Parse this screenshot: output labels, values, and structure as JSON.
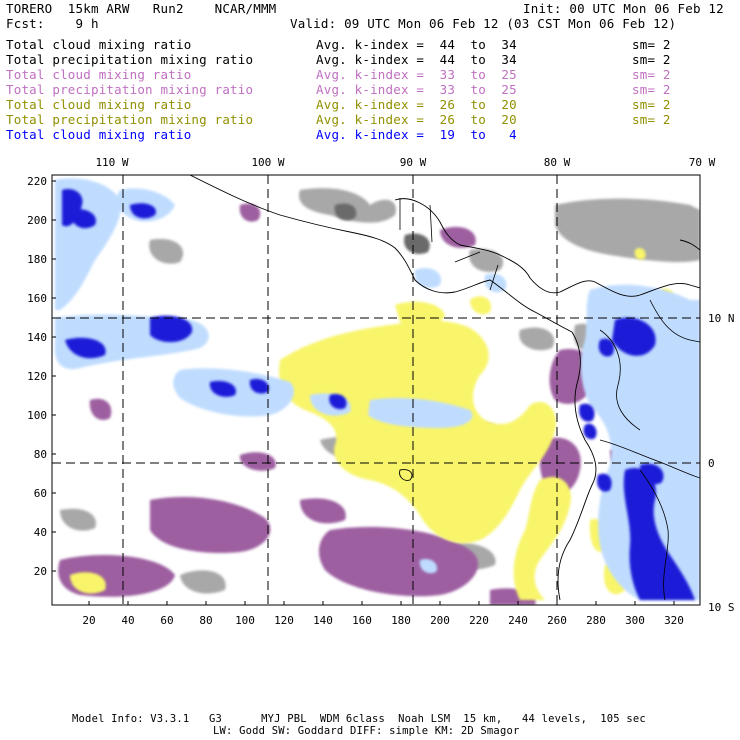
{
  "header": {
    "model": "TORERO  15km ARW   Run2    NCAR/MMM",
    "init": "Init: 00 UTC Mon 06 Feb 12",
    "fcst": "Fcst:    9 h",
    "valid": "Valid: 09 UTC Mon 06 Feb 12 (03 CST Mon 06 Feb 12)"
  },
  "fields": [
    {
      "name": "Total cloud mixing ratio",
      "avg": "Avg. k-index =  44  to  34",
      "sm": "sm= 2",
      "color": "#000000"
    },
    {
      "name": "Total precipitation mixing ratio",
      "avg": "Avg. k-index =  44  to  34",
      "sm": "sm= 2",
      "color": "#000000"
    },
    {
      "name": "Total cloud mixing ratio",
      "avg": "Avg. k-index =  33  to  25",
      "sm": "sm= 2",
      "color": "#c070c0"
    },
    {
      "name": "Total precipitation mixing ratio",
      "avg": "Avg. k-index =  33  to  25",
      "sm": "sm= 2",
      "color": "#c070c0"
    },
    {
      "name": "Total cloud mixing ratio",
      "avg": "Avg. k-index =  26  to  20",
      "sm": "sm= 2",
      "color": "#909000"
    },
    {
      "name": "Total precipitation mixing ratio",
      "avg": "Avg. k-index =  26  to  20",
      "sm": "sm= 2",
      "color": "#909000"
    },
    {
      "name": "Total cloud mixing ratio",
      "avg": "Avg. k-index =  19  to   4",
      "sm": "",
      "color": "#0000ff"
    }
  ],
  "map": {
    "lon_labels": [
      "110 W",
      "100 W",
      "90 W",
      "80 W",
      "70 W"
    ],
    "lat_labels": [
      "10 N",
      "0",
      "10 S"
    ],
    "y_ticks": [
      "220",
      "200",
      "180",
      "160",
      "140",
      "120",
      "100",
      "80",
      "60",
      "40",
      "20"
    ],
    "x_ticks": [
      "20",
      "40",
      "60",
      "80",
      "100",
      "120",
      "140",
      "160",
      "180",
      "200",
      "220",
      "240",
      "260",
      "280",
      "300",
      "320"
    ],
    "palette": {
      "gray": "#a8a8a8",
      "darkgray": "#6a6a6a",
      "purple": "#9d5fa0",
      "yellow": "#f8f56a",
      "lightblue": "#bfdcff",
      "blue": "#1b1bd8"
    }
  },
  "footer": {
    "line1": "Model Info: V3.3.1   G3      MYJ PBL  WDM 6class  Noah LSM  15 km,   44 levels,  105 sec",
    "line2": "LW: Godd SW: Goddard DIFF: simple KM: 2D Smagor"
  }
}
